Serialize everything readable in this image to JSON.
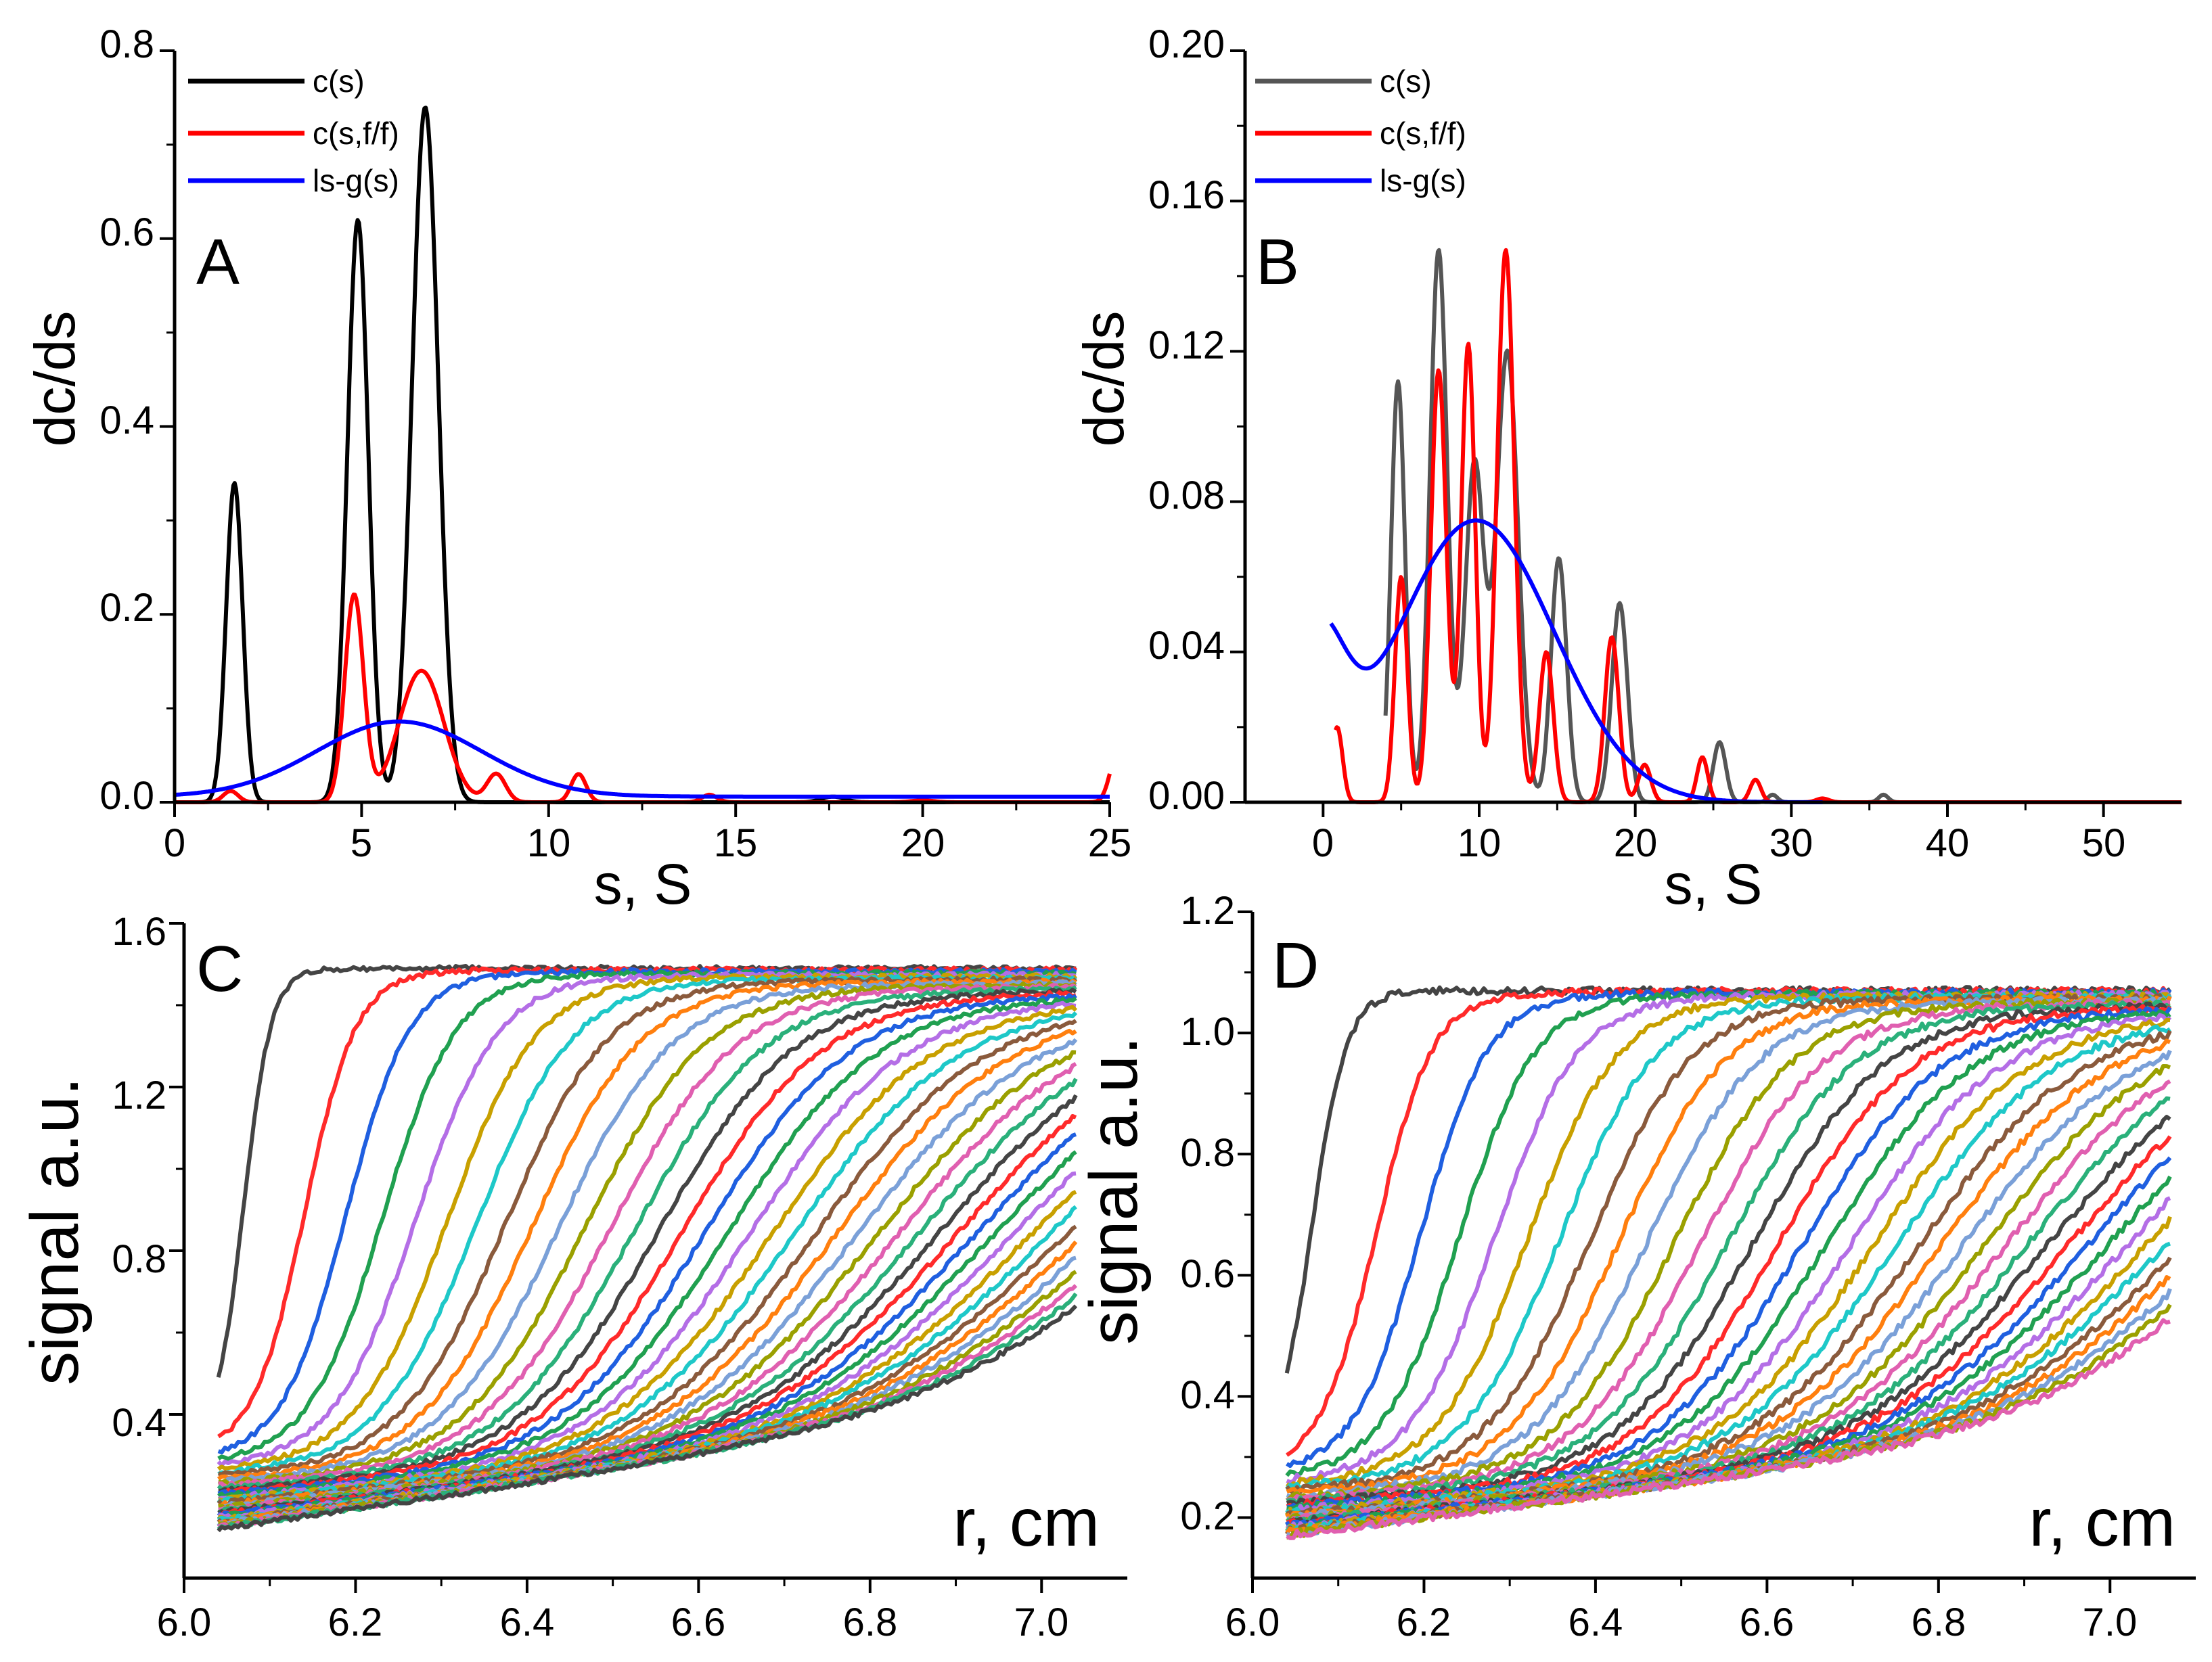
{
  "chart_data": [
    {
      "panel": "A",
      "type": "line",
      "letter": "A",
      "xlabel": "s, S",
      "ylabel": "dc/ds",
      "xlim": [
        0,
        25
      ],
      "ylim": [
        0,
        0.8
      ],
      "xticks": [
        0,
        5,
        10,
        15,
        20,
        25
      ],
      "xtick_labels": [
        "0",
        "5",
        "10",
        "15",
        "20",
        "25"
      ],
      "yticks": [
        0,
        0.2,
        0.4,
        0.6,
        0.8
      ],
      "ytick_labels": [
        "0.0",
        "0.2",
        "0.4",
        "0.6",
        "0.8"
      ],
      "legend": {
        "position": "top-left",
        "entries": [
          "c(s)",
          "c(s,f/f)",
          "ls-g(s)"
        ]
      },
      "series": [
        {
          "name": "c(s)",
          "color": "#000000",
          "kind": "peaks",
          "baseline": 0.0,
          "x_range": [
            0,
            25
          ],
          "peaks": [
            [
              1.6,
              0.34,
              0.22
            ],
            [
              4.9,
              0.62,
              0.28
            ],
            [
              6.7,
              0.74,
              0.35
            ],
            [
              17.6,
              0.006,
              0.3
            ]
          ]
        },
        {
          "name": "c(s,f/f)",
          "color": "#ff0000",
          "kind": "peaks",
          "baseline": 0.0,
          "x_range": [
            0,
            25
          ],
          "peaks": [
            [
              1.5,
              0.012,
              0.2
            ],
            [
              4.8,
              0.22,
              0.25
            ],
            [
              6.6,
              0.14,
              0.6
            ],
            [
              8.6,
              0.03,
              0.25
            ],
            [
              10.8,
              0.03,
              0.2
            ],
            [
              14.3,
              0.008,
              0.2
            ],
            [
              20.0,
              0.002,
              0.3
            ],
            [
              25.2,
              0.05,
              0.2
            ]
          ]
        },
        {
          "name": "ls-g(s)",
          "color": "#0000ff",
          "kind": "peaks",
          "baseline": 0.006,
          "x_range": [
            0,
            25
          ],
          "peaks": [
            [
              6.0,
              0.08,
              2.2
            ]
          ]
        }
      ]
    },
    {
      "panel": "B",
      "type": "line",
      "letter": "B",
      "xlabel": "s, S",
      "ylabel": "dc/ds",
      "xlim": [
        -5,
        55
      ],
      "ylim": [
        0,
        0.2
      ],
      "xticks": [
        0,
        10,
        20,
        30,
        40,
        50
      ],
      "xtick_labels": [
        "0",
        "10",
        "20",
        "30",
        "40",
        "50"
      ],
      "yticks": [
        0,
        0.04,
        0.08,
        0.12,
        0.16,
        0.2
      ],
      "ytick_labels": [
        "0.00",
        "0.04",
        "0.08",
        "0.12",
        "0.16",
        "0.20"
      ],
      "legend": {
        "position": "top-left",
        "entries": [
          "c(s)",
          "c(s,f/f)",
          "ls-g(s)"
        ]
      },
      "series": [
        {
          "name": "c(s)",
          "color": "#555555",
          "kind": "peaks",
          "baseline": 0.0,
          "x_range": [
            4,
            55
          ],
          "peaks": [
            [
              4.8,
              0.112,
              0.45
            ],
            [
              7.4,
              0.147,
              0.55
            ],
            [
              9.7,
              0.09,
              0.6
            ],
            [
              11.8,
              0.12,
              0.7
            ],
            [
              15.1,
              0.065,
              0.5
            ],
            [
              19.0,
              0.053,
              0.5
            ],
            [
              25.4,
              0.016,
              0.4
            ],
            [
              28.8,
              0.002,
              0.3
            ],
            [
              35.9,
              0.002,
              0.3
            ]
          ]
        },
        {
          "name": "c(s,f/f)",
          "color": "#ff0000",
          "kind": "peaks",
          "baseline": 0.0,
          "x_range": [
            0.8,
            55
          ],
          "peaks": [
            [
              0.9,
              0.02,
              0.35
            ],
            [
              5.0,
              0.06,
              0.4
            ],
            [
              7.4,
              0.115,
              0.5
            ],
            [
              9.3,
              0.122,
              0.45
            ],
            [
              11.7,
              0.147,
              0.55
            ],
            [
              14.3,
              0.04,
              0.45
            ],
            [
              18.5,
              0.044,
              0.45
            ],
            [
              20.6,
              0.01,
              0.4
            ],
            [
              24.3,
              0.012,
              0.35
            ],
            [
              27.7,
              0.006,
              0.35
            ],
            [
              32.0,
              0.001,
              0.4
            ]
          ]
        },
        {
          "name": "ls-g(s)",
          "color": "#0000ff",
          "kind": "peaks",
          "baseline": 0.0,
          "x_range": [
            0.5,
            32
          ],
          "peaks": [
            [
              9.8,
              0.075,
              5.0
            ],
            [
              -0.5,
              0.04,
              1.8
            ]
          ]
        }
      ]
    },
    {
      "panel": "C",
      "type": "line",
      "letter": "C",
      "xlabel": "r, cm",
      "ylabel": "signal a.u.",
      "xlim": [
        6.0,
        7.1
      ],
      "ylim": [
        0.0,
        1.6
      ],
      "xticks": [
        6.0,
        6.2,
        6.4,
        6.6,
        6.8,
        7.0
      ],
      "xtick_labels": [
        "6.0",
        "6.2",
        "6.4",
        "6.6",
        "6.8",
        "7.0"
      ],
      "yticks": [
        0.4,
        0.8,
        1.2,
        1.6
      ],
      "ytick_labels": [
        "0.4",
        "0.8",
        "1.2",
        "1.6"
      ],
      "family": {
        "count": 40,
        "x_start": 6.04,
        "x_end": 7.04,
        "plateau_top": 1.49,
        "plateau_bottom": 1.33,
        "base_first": 0.34,
        "base_last": 0.12,
        "slope_start": 0.06,
        "slope_end": 0.3,
        "mid_first": 6.07,
        "mid_last": 7.18,
        "width_first": 0.016,
        "width_last": 0.14
      }
    },
    {
      "panel": "D",
      "type": "line",
      "letter": "D",
      "xlabel": "r, cm",
      "ylabel": "signal a.u.",
      "xlim": [
        6.0,
        7.1
      ],
      "ylim": [
        0.1,
        1.2
      ],
      "xticks": [
        6.0,
        6.2,
        6.4,
        6.6,
        6.8,
        7.0
      ],
      "xtick_labels": [
        "6.0",
        "6.2",
        "6.4",
        "6.6",
        "6.8",
        "7.0"
      ],
      "yticks": [
        0.2,
        0.4,
        0.6,
        0.8,
        1.0,
        1.2
      ],
      "ytick_labels": [
        "0.2",
        "0.4",
        "0.6",
        "0.8",
        "1.0",
        "1.2"
      ],
      "family": {
        "count": 38,
        "x_start": 6.04,
        "x_end": 7.07,
        "plateau_top": 1.07,
        "plateau_bottom": 1.0,
        "base_first": 0.3,
        "base_last": 0.17,
        "slope_start": 0.03,
        "slope_end": 0.18,
        "mid_first": 6.07,
        "mid_last": 7.2,
        "width_first": 0.02,
        "width_last": 0.13
      }
    }
  ],
  "palette": [
    "#444444",
    "#ff2a2a",
    "#1f5fe0",
    "#20a050",
    "#b46ee6",
    "#c8a000",
    "#1ec8c8",
    "#8a5a3c",
    "#ff7f0e",
    "#7aa0d8",
    "#9aa000",
    "#e05fb0",
    "#2ab07a"
  ]
}
